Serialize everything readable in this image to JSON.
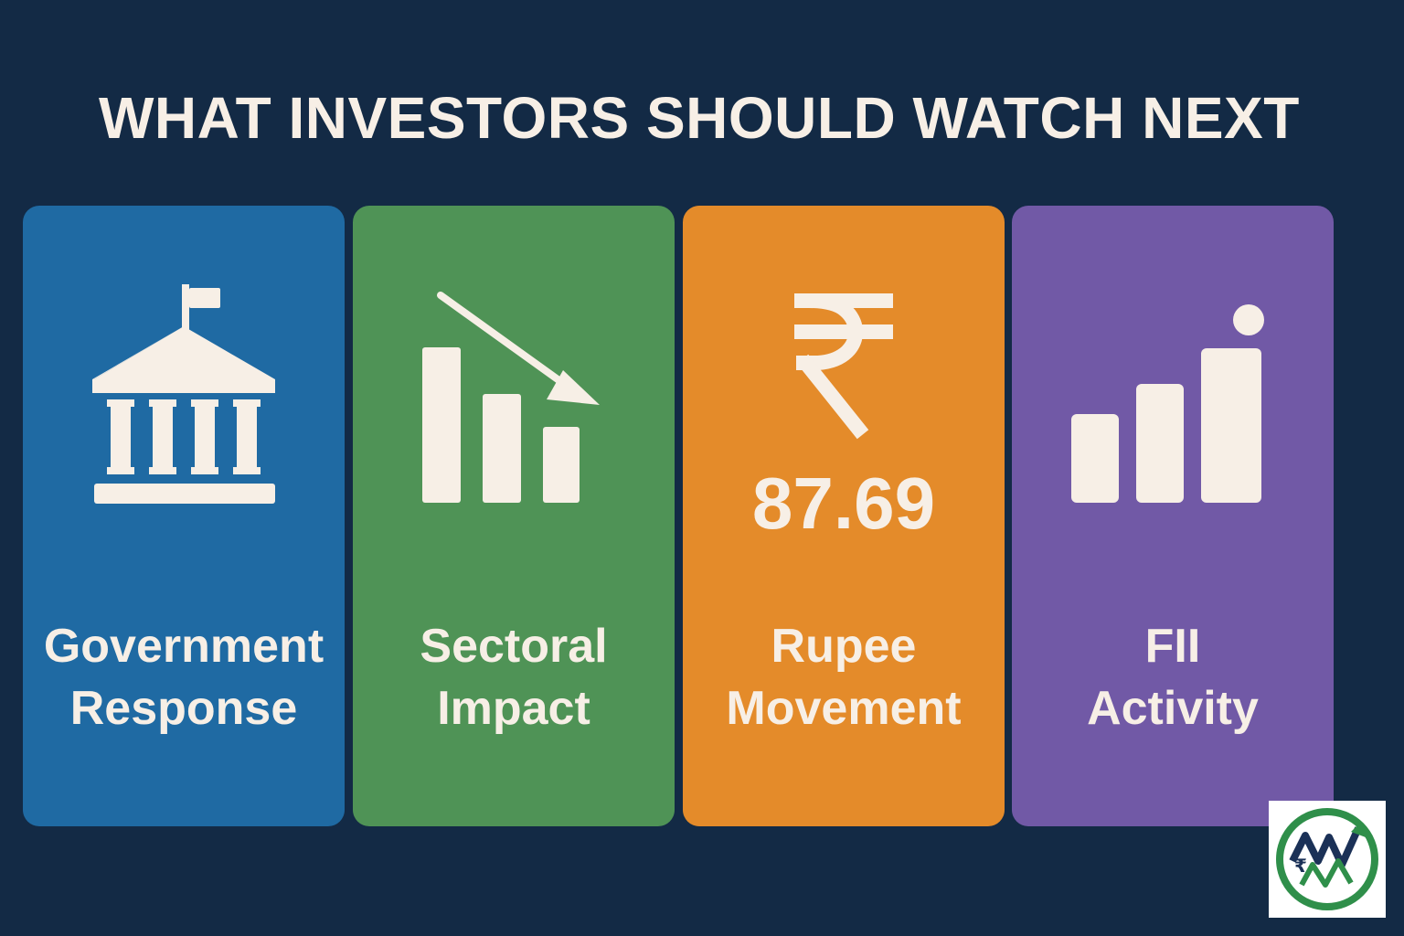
{
  "title": "WHAT INVESTORS SHOULD WATCH NEXT",
  "colors": {
    "background": "#132a45",
    "text": "#f7efe6",
    "government": "#1f6aa3",
    "sectoral": "#4f9356",
    "rupee": "#e48b2a",
    "fii": "#7159a6",
    "logo_green": "#2f8f4a",
    "logo_navy": "#1b3157"
  },
  "cards": [
    {
      "icon": "government-building-icon",
      "line1": "Government",
      "line2": "Response"
    },
    {
      "icon": "declining-bar-chart-icon",
      "line1": "Sectoral",
      "line2": "Impact"
    },
    {
      "icon": "rupee-icon",
      "value": "87.69",
      "line1": "Rupee",
      "line2": "Movement"
    },
    {
      "icon": "rising-bar-chart-icon",
      "line1": "FII",
      "line2": "Activity"
    }
  ],
  "logo": {
    "icon": "brand-logo-icon"
  }
}
